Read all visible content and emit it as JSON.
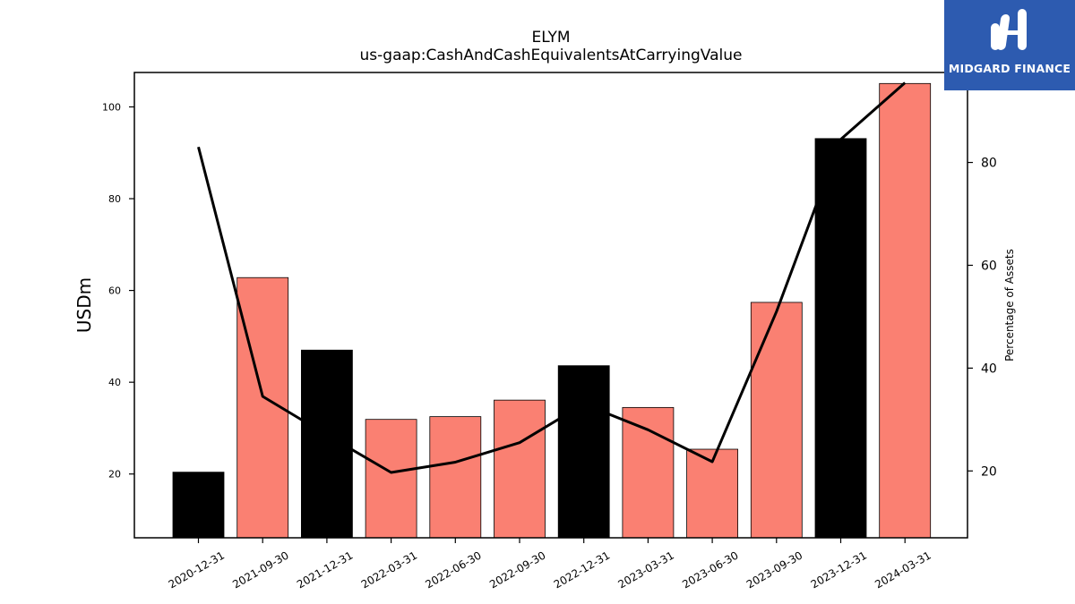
{
  "header": {
    "title": "ELYM",
    "subtitle": "us-gaap:CashAndCashEquivalentsAtCarryingValue"
  },
  "brand": {
    "name": "MIDGARD FINANCE",
    "background": "#2d5bb0"
  },
  "chart_data": {
    "type": "bar",
    "categories": [
      "2020-12-31",
      "2021-09-30",
      "2021-12-31",
      "2022-03-31",
      "2022-06-30",
      "2022-09-30",
      "2022-12-31",
      "2023-03-31",
      "2023-06-30",
      "2023-09-30",
      "2023-12-31",
      "2024-03-31"
    ],
    "series": [
      {
        "type": "bar",
        "axis": "left",
        "values": [
          20.4,
          62.8,
          47.0,
          31.9,
          32.5,
          36.1,
          43.6,
          34.5,
          25.4,
          57.4,
          93.1,
          105.1
        ],
        "colors": [
          "#000000",
          "#fa8072",
          "#000000",
          "#fa8072",
          "#fa8072",
          "#fa8072",
          "#000000",
          "#fa8072",
          "#fa8072",
          "#fa8072",
          "#000000",
          "#fa8072"
        ]
      },
      {
        "type": "line",
        "axis": "right",
        "color": "#000000",
        "values": [
          83.0,
          34.5,
          27.0,
          19.7,
          21.7,
          25.5,
          33.0,
          28.0,
          21.8,
          51.0,
          84.5,
          95.5
        ]
      }
    ],
    "ylabel": "USDm",
    "y2label": "Percentage of Assets",
    "ylim": [
      6.1,
      107.5
    ],
    "y2lim": [
      7.0,
      97.5
    ],
    "yticks": [
      20,
      40,
      60,
      80,
      100
    ],
    "y2ticks": [
      20,
      40,
      60,
      80
    ],
    "grid": false,
    "legend": "none"
  }
}
